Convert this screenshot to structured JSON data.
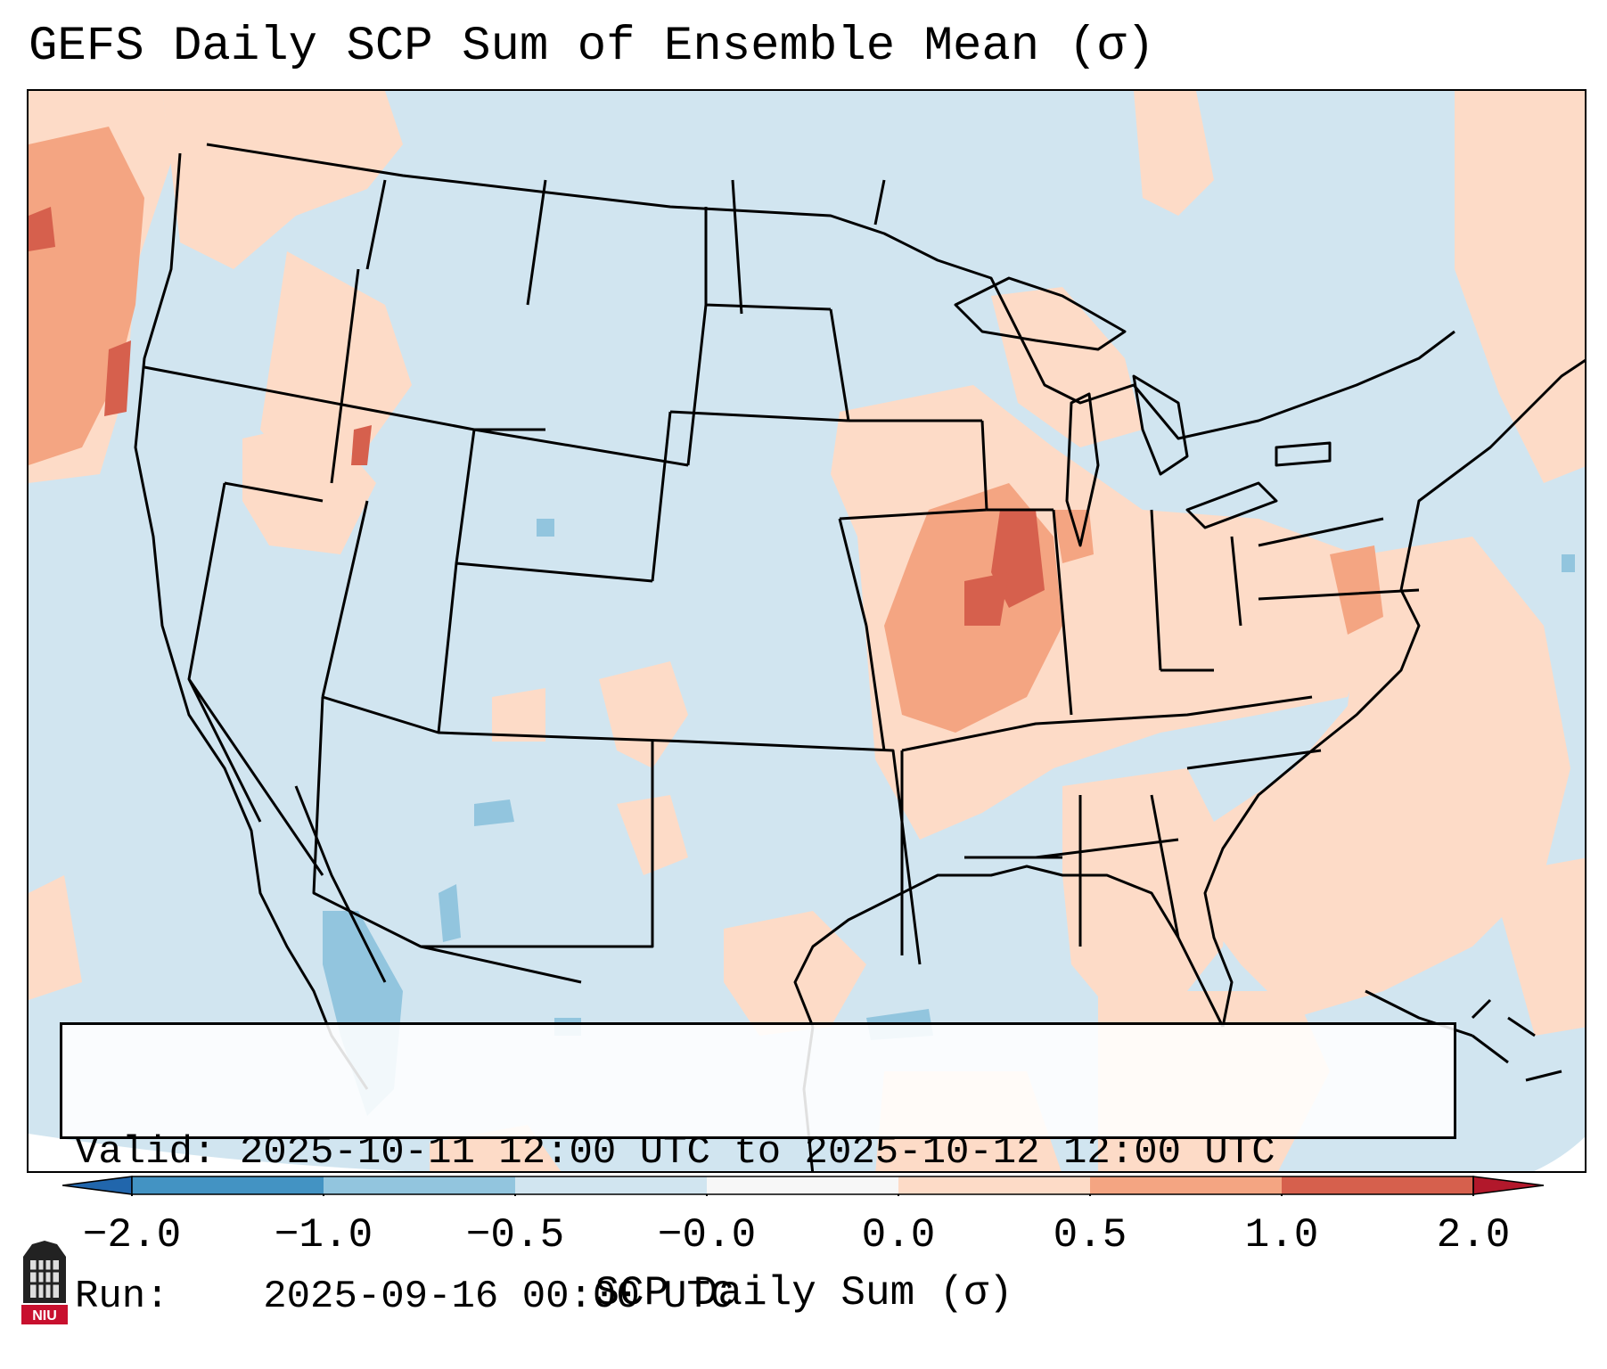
{
  "title": "GEFS Daily SCP Sum of Ensemble Mean (σ)",
  "info": {
    "valid_label": "Valid:",
    "valid_value": "2025-10-11 12:00 UTC to 2025-10-12 12:00 UTC",
    "run_label": "Run:",
    "run_value": "2025-09-16 00:00 UTC"
  },
  "colorbar": {
    "label": "SCP Daily Sum (σ)",
    "ticks": [
      "−2.0",
      "−1.0",
      "−0.5",
      "−0.0",
      "0.0",
      "0.5",
      "1.0",
      "2.0"
    ],
    "bins": [
      {
        "from": "-2.0",
        "to": "-1.0",
        "color": "#4393c3"
      },
      {
        "from": "-1.0",
        "to": "-0.5",
        "color": "#92c5de"
      },
      {
        "from": "-0.5",
        "to": "-0.0",
        "color": "#d1e5f0"
      },
      {
        "from": "-0.0",
        "to": "0.0",
        "color": "#f7f7f7"
      },
      {
        "from": "0.0",
        "to": "0.5",
        "color": "#fddbc7"
      },
      {
        "from": "0.5",
        "to": "1.0",
        "color": "#f4a582"
      },
      {
        "from": "1.0",
        "to": "2.0",
        "color": "#d6604d"
      }
    ],
    "under_color": "#2166ac",
    "over_color": "#b2182b"
  },
  "colors": {
    "background": "#d1e5f0",
    "light_positive": "#fddbc7",
    "moderate_positive": "#f4a582",
    "strong_positive": "#d6604d",
    "light_negative": "#92c5de"
  },
  "logo": {
    "text": "NIU",
    "name": "niu-logo"
  }
}
